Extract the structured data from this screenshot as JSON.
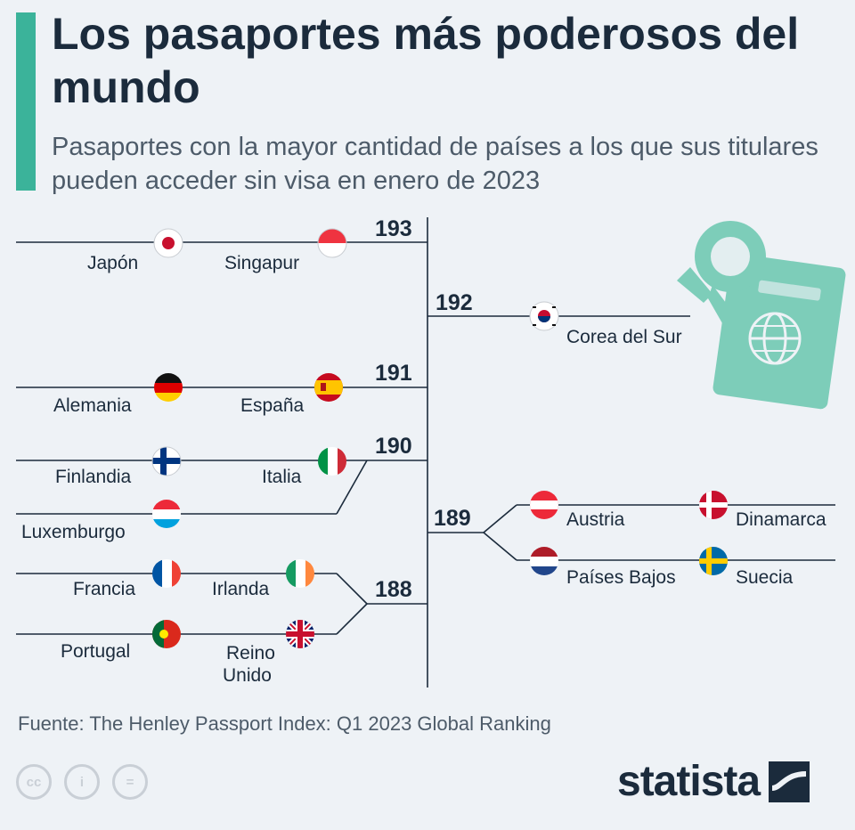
{
  "header": {
    "title": "Los pasaportes más poderosos del mundo",
    "subtitle": "Pasaportes con la mayor cantidad de países a los que sus titulares pueden acceder sin visa en enero de 2023"
  },
  "chart_data": {
    "type": "table",
    "groups": [
      {
        "value": 193,
        "countries": [
          "Japón",
          "Singapur"
        ]
      },
      {
        "value": 192,
        "countries": [
          "Corea del Sur"
        ]
      },
      {
        "value": 191,
        "countries": [
          "Alemania",
          "España"
        ]
      },
      {
        "value": 190,
        "countries": [
          "Finlandia",
          "Italia",
          "Luxemburgo"
        ]
      },
      {
        "value": 189,
        "countries": [
          "Austria",
          "Dinamarca",
          "Países Bajos",
          "Suecia"
        ]
      },
      {
        "value": 188,
        "countries": [
          "Francia",
          "Irlanda",
          "Portugal",
          "Reino Unido"
        ]
      }
    ]
  },
  "labels": {
    "v193": "193",
    "v192": "192",
    "v191": "191",
    "v190": "190",
    "v189": "189",
    "v188": "188",
    "japon": "Japón",
    "singapur": "Singapur",
    "corea_sur": "Corea del Sur",
    "alemania": "Alemania",
    "espana": "España",
    "finlandia": "Finlandia",
    "italia": "Italia",
    "luxemburgo": "Luxemburgo",
    "austria": "Austria",
    "dinamarca": "Dinamarca",
    "paises_bajos": "Países Bajos",
    "suecia": "Suecia",
    "francia": "Francia",
    "irlanda": "Irlanda",
    "portugal": "Portugal",
    "reino_unido_1": "Reino",
    "reino_unido_2": "Unido"
  },
  "icons": {
    "passport": "passport-illustration-icon",
    "license": [
      "cc-icon",
      "by-icon",
      "nd-icon"
    ]
  },
  "colors": {
    "accent": "#3bb39a",
    "text": "#1b2b3c",
    "passport": "#7dcdb9"
  },
  "footer": {
    "source": "Fuente: The Henley Passport Index: Q1 2023 Global Ranking",
    "cc_label": "cc",
    "by_label": "i",
    "nd_label": "=",
    "logo": "statista"
  }
}
